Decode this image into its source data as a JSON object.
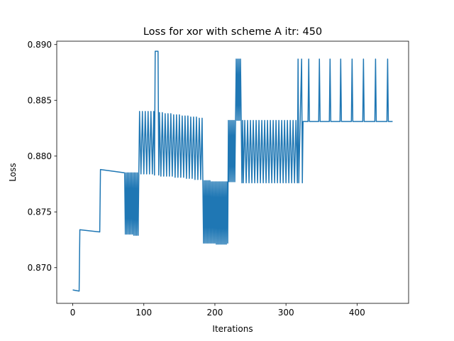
{
  "chart_data": {
    "type": "line",
    "title": "Loss for xor with scheme A itr: 450",
    "xlabel": "Iterations",
    "ylabel": "Loss",
    "xlim": [
      -22.5,
      472.5
    ],
    "ylim": [
      0.8668,
      0.8903
    ],
    "xticks": [
      0,
      100,
      200,
      300,
      400
    ],
    "yticks": [
      0.87,
      0.875,
      0.88,
      0.885,
      0.89
    ],
    "xtick_labels": [
      "0",
      "100",
      "200",
      "300",
      "400"
    ],
    "ytick_labels": [
      "0.870",
      "0.875",
      "0.880",
      "0.885",
      "0.890"
    ],
    "grid": false,
    "legend": "none",
    "line_color": "#1f77b4",
    "series": [
      {
        "points": [
          [
            0,
            0.868
          ],
          [
            9,
            0.8679
          ],
          [
            10,
            0.8734
          ],
          [
            38,
            0.8732
          ],
          [
            39,
            0.8788
          ],
          [
            73,
            0.8785
          ],
          [
            74,
            0.873
          ],
          [
            75,
            0.8785
          ],
          [
            76,
            0.873
          ],
          [
            77,
            0.8785
          ],
          [
            78,
            0.873
          ],
          [
            79,
            0.8785
          ],
          [
            80,
            0.873
          ],
          [
            81,
            0.8785
          ],
          [
            82,
            0.873
          ],
          [
            83,
            0.8785
          ],
          [
            84,
            0.873
          ],
          [
            85,
            0.8785
          ],
          [
            86,
            0.8729
          ],
          [
            87,
            0.8785
          ],
          [
            88,
            0.8729
          ],
          [
            89,
            0.8785
          ],
          [
            90,
            0.8729
          ],
          [
            91,
            0.8785
          ],
          [
            92,
            0.8729
          ],
          [
            93,
            0.8785
          ],
          [
            94,
            0.884
          ],
          [
            96,
            0.8784
          ],
          [
            98,
            0.884
          ],
          [
            100,
            0.8784
          ],
          [
            102,
            0.884
          ],
          [
            104,
            0.8784
          ],
          [
            106,
            0.884
          ],
          [
            108,
            0.8784
          ],
          [
            110,
            0.884
          ],
          [
            112,
            0.8784
          ],
          [
            114,
            0.884
          ],
          [
            115,
            0.8783
          ],
          [
            116,
            0.8894
          ],
          [
            120,
            0.8894
          ],
          [
            121,
            0.8783
          ],
          [
            122,
            0.8839
          ],
          [
            124,
            0.8782
          ],
          [
            126,
            0.8839
          ],
          [
            128,
            0.8782
          ],
          [
            130,
            0.8838
          ],
          [
            132,
            0.8782
          ],
          [
            134,
            0.8838
          ],
          [
            136,
            0.8782
          ],
          [
            138,
            0.8838
          ],
          [
            140,
            0.8782
          ],
          [
            142,
            0.8837
          ],
          [
            144,
            0.8781
          ],
          [
            146,
            0.8837
          ],
          [
            148,
            0.8781
          ],
          [
            150,
            0.8837
          ],
          [
            152,
            0.8781
          ],
          [
            154,
            0.8836
          ],
          [
            156,
            0.8781
          ],
          [
            158,
            0.8836
          ],
          [
            160,
            0.878
          ],
          [
            162,
            0.8836
          ],
          [
            164,
            0.878
          ],
          [
            166,
            0.8835
          ],
          [
            168,
            0.878
          ],
          [
            170,
            0.8835
          ],
          [
            172,
            0.8779
          ],
          [
            174,
            0.8835
          ],
          [
            176,
            0.8779
          ],
          [
            178,
            0.8834
          ],
          [
            180,
            0.8779
          ],
          [
            182,
            0.8834
          ],
          [
            183,
            0.8778
          ],
          [
            184,
            0.8722
          ],
          [
            185,
            0.8778
          ],
          [
            186,
            0.8722
          ],
          [
            187,
            0.8778
          ],
          [
            188,
            0.8722
          ],
          [
            189,
            0.8778
          ],
          [
            190,
            0.8722
          ],
          [
            191,
            0.8778
          ],
          [
            192,
            0.8722
          ],
          [
            193,
            0.8778
          ],
          [
            194,
            0.8722
          ],
          [
            195,
            0.8777
          ],
          [
            196,
            0.8722
          ],
          [
            197,
            0.8777
          ],
          [
            198,
            0.8722
          ],
          [
            199,
            0.8777
          ],
          [
            200,
            0.8722
          ],
          [
            201,
            0.8777
          ],
          [
            202,
            0.8721
          ],
          [
            203,
            0.8777
          ],
          [
            204,
            0.8721
          ],
          [
            205,
            0.8777
          ],
          [
            206,
            0.8721
          ],
          [
            207,
            0.8777
          ],
          [
            208,
            0.8721
          ],
          [
            209,
            0.8777
          ],
          [
            210,
            0.8721
          ],
          [
            211,
            0.8777
          ],
          [
            212,
            0.8721
          ],
          [
            213,
            0.8777
          ],
          [
            214,
            0.8721
          ],
          [
            215,
            0.8777
          ],
          [
            216,
            0.8721
          ],
          [
            217,
            0.8777
          ],
          [
            218,
            0.8722
          ],
          [
            219,
            0.8832
          ],
          [
            220,
            0.8777
          ],
          [
            221,
            0.8832
          ],
          [
            222,
            0.8777
          ],
          [
            223,
            0.8832
          ],
          [
            224,
            0.8777
          ],
          [
            225,
            0.8832
          ],
          [
            226,
            0.8777
          ],
          [
            227,
            0.8832
          ],
          [
            228,
            0.8777
          ],
          [
            229,
            0.8832
          ],
          [
            230,
            0.8887
          ],
          [
            231,
            0.8832
          ],
          [
            232,
            0.8887
          ],
          [
            233,
            0.8832
          ],
          [
            234,
            0.8887
          ],
          [
            235,
            0.8832
          ],
          [
            236,
            0.8887
          ],
          [
            237,
            0.8832
          ],
          [
            238,
            0.8776
          ],
          [
            239,
            0.8832
          ],
          [
            240,
            0.8776
          ],
          [
            242,
            0.8832
          ],
          [
            244,
            0.8776
          ],
          [
            246,
            0.8832
          ],
          [
            248,
            0.8776
          ],
          [
            250,
            0.8832
          ],
          [
            252,
            0.8776
          ],
          [
            254,
            0.8832
          ],
          [
            256,
            0.8776
          ],
          [
            258,
            0.8832
          ],
          [
            260,
            0.8776
          ],
          [
            262,
            0.8832
          ],
          [
            264,
            0.8776
          ],
          [
            266,
            0.8832
          ],
          [
            268,
            0.8776
          ],
          [
            270,
            0.8832
          ],
          [
            272,
            0.8776
          ],
          [
            274,
            0.8832
          ],
          [
            276,
            0.8776
          ],
          [
            278,
            0.8832
          ],
          [
            280,
            0.8776
          ],
          [
            282,
            0.8832
          ],
          [
            284,
            0.8776
          ],
          [
            286,
            0.8832
          ],
          [
            288,
            0.8776
          ],
          [
            290,
            0.8832
          ],
          [
            292,
            0.8776
          ],
          [
            294,
            0.8832
          ],
          [
            296,
            0.8776
          ],
          [
            298,
            0.8832
          ],
          [
            300,
            0.8776
          ],
          [
            302,
            0.8832
          ],
          [
            304,
            0.8776
          ],
          [
            306,
            0.8832
          ],
          [
            308,
            0.8776
          ],
          [
            310,
            0.8832
          ],
          [
            312,
            0.8776
          ],
          [
            314,
            0.8832
          ],
          [
            316,
            0.8776
          ],
          [
            317,
            0.8887
          ],
          [
            318,
            0.8776
          ],
          [
            320,
            0.8832
          ],
          [
            322,
            0.8887
          ],
          [
            323,
            0.8776
          ],
          [
            324,
            0.8831
          ],
          [
            331,
            0.8831
          ],
          [
            332,
            0.8887
          ],
          [
            333,
            0.8831
          ],
          [
            346,
            0.8831
          ],
          [
            347,
            0.8887
          ],
          [
            348,
            0.8831
          ],
          [
            361,
            0.8831
          ],
          [
            362,
            0.8887
          ],
          [
            363,
            0.8831
          ],
          [
            376,
            0.8831
          ],
          [
            377,
            0.8887
          ],
          [
            378,
            0.8831
          ],
          [
            392,
            0.8831
          ],
          [
            393,
            0.8887
          ],
          [
            394,
            0.8831
          ],
          [
            408,
            0.8831
          ],
          [
            409,
            0.8887
          ],
          [
            410,
            0.8831
          ],
          [
            425,
            0.8831
          ],
          [
            426,
            0.8887
          ],
          [
            427,
            0.8831
          ],
          [
            442,
            0.8831
          ],
          [
            443,
            0.8887
          ],
          [
            444,
            0.8831
          ],
          [
            450,
            0.8831
          ]
        ]
      }
    ]
  }
}
